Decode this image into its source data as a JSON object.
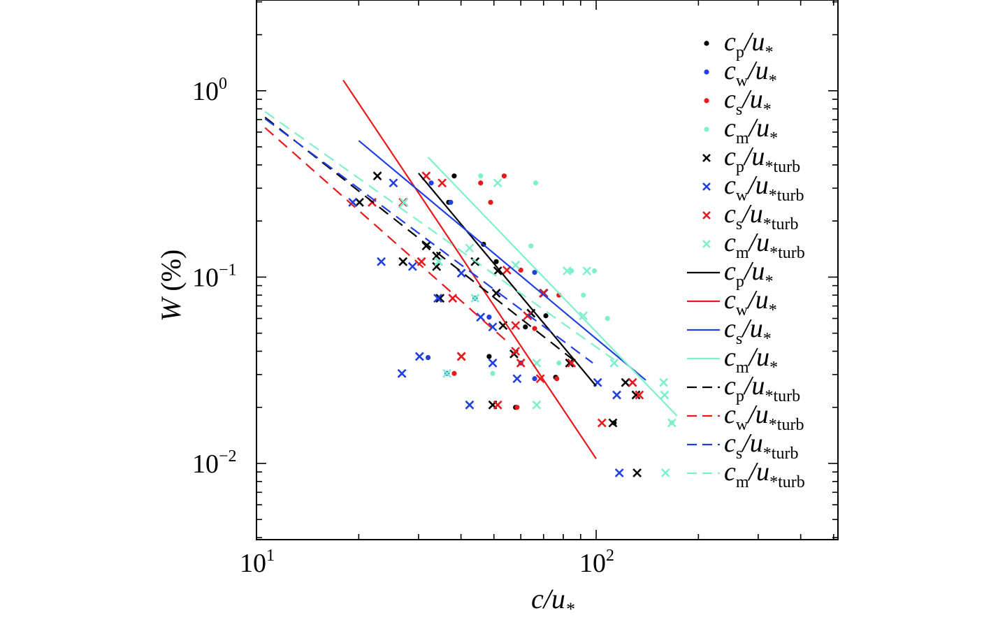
{
  "chart_data": {
    "type": "scatter",
    "title": "",
    "xlabel": {
      "main": "c/u",
      "sub": "*"
    },
    "ylabel": {
      "main": "W",
      "rest": " (%)"
    },
    "xscale": "log",
    "yscale": "log",
    "xlim": [
      10,
      515
    ],
    "ylim": [
      0.0039,
      3.07
    ],
    "grid": false,
    "legend_placement": "right",
    "xticks": [
      {
        "value": 10,
        "base": "10",
        "exp": "1"
      },
      {
        "value": 100,
        "base": "10",
        "exp": "2"
      }
    ],
    "yticks": [
      {
        "value": 1,
        "base": "10",
        "exp": "0"
      },
      {
        "value": 0.1,
        "base": "10",
        "exp": "−1"
      },
      {
        "value": 0.01,
        "base": "10",
        "exp": "−2"
      }
    ],
    "colors": {
      "p": "#000000",
      "w": "#1f3fe0",
      "s": "#e8191c",
      "m": "#7ff0cf"
    },
    "scatter_series": [
      {
        "name": "cp/u*",
        "marker": "dot",
        "color_key": "p",
        "label": {
          "a": "c",
          "b": "p",
          "c": "/u",
          "d": "*"
        },
        "x": [
          38.2,
          36.8,
          46.6,
          50.8,
          61.9,
          71.1,
          48.4,
          57.9,
          113,
          76
        ],
        "y": [
          0.349,
          0.252,
          0.15,
          0.121,
          0.054,
          0.062,
          0.0375,
          0.02,
          0.0165,
          0.029
        ]
      },
      {
        "name": "cw/u*",
        "marker": "dot",
        "color_key": "w",
        "label": {
          "a": "c",
          "b": "w",
          "c": "/u",
          "d": "*"
        },
        "x": [
          32.7,
          37.3,
          44.0,
          48.4,
          32.0,
          36.4,
          60,
          65.9,
          65.9
        ],
        "y": [
          0.32,
          0.252,
          0.077,
          0.061,
          0.037,
          0.0304,
          0.0346,
          0.106,
          0.0285
        ]
      },
      {
        "name": "cs/u*",
        "marker": "dot",
        "color_key": "s",
        "label": {
          "a": "c",
          "b": "s",
          "c": "/u",
          "d": "*"
        },
        "x": [
          53.6,
          45.7,
          48.9,
          38.2,
          58.5,
          76.6,
          65.9,
          77.7,
          60
        ],
        "y": [
          0.349,
          0.32,
          0.252,
          0.0304,
          0.02,
          0.0285,
          0.053,
          0.08,
          0.109
        ]
      },
      {
        "name": "cm/u*",
        "marker": "dot",
        "color_key": "m",
        "label": {
          "a": "c",
          "b": "m",
          "c": "/u",
          "d": "*"
        },
        "x": [
          45.7,
          66.4,
          64.3,
          84.6,
          98.8,
          91.7,
          108,
          77.7,
          49.6,
          167
        ],
        "y": [
          0.349,
          0.32,
          0.147,
          0.108,
          0.108,
          0.08,
          0.06,
          0.0346,
          0.0304,
          0.0165
        ]
      },
      {
        "name": "cp/u*turb",
        "marker": "x",
        "color_key": "p",
        "label": {
          "a": "c",
          "b": "p",
          "c": "/u",
          "d": "*turb"
        },
        "x": [
          22.7,
          20.1,
          31.6,
          33.9,
          27.0,
          33.9,
          44.0,
          51.3,
          34.7,
          50.8,
          53.2,
          64.3,
          57.3,
          40.1,
          49.6,
          83.5,
          122,
          131,
          112,
          132
        ],
        "y": [
          0.349,
          0.252,
          0.147,
          0.13,
          0.121,
          0.114,
          0.121,
          0.108,
          0.077,
          0.082,
          0.055,
          0.064,
          0.0387,
          0.0375,
          0.0206,
          0.0346,
          0.0272,
          0.0233,
          0.0165,
          0.0089
        ]
      },
      {
        "name": "cw/u*turb",
        "marker": "x",
        "color_key": "w",
        "label": {
          "a": "c",
          "b": "w",
          "c": "/u",
          "d": "*turb"
        },
        "x": [
          19.2,
          25.3,
          23.3,
          28.8,
          34.2,
          40.1,
          45.7,
          49.6,
          42.4,
          26.8,
          30.2,
          49.6,
          58.5,
          101,
          115,
          117,
          70.2
        ],
        "y": [
          0.252,
          0.32,
          0.121,
          0.114,
          0.077,
          0.105,
          0.061,
          0.054,
          0.0206,
          0.0304,
          0.0375,
          0.0346,
          0.0285,
          0.0272,
          0.0233,
          0.0089,
          0.082
        ]
      },
      {
        "name": "cs/u*turb",
        "marker": "x",
        "color_key": "s",
        "label": {
          "a": "c",
          "b": "s",
          "c": "/u",
          "d": "*turb"
        },
        "x": [
          31.6,
          35.2,
          27.0,
          21.9,
          30.6,
          37.8,
          54.6,
          57.9,
          69.9,
          62.8,
          40.1,
          60,
          68.5,
          51.3,
          57.9,
          84.6,
          128,
          134,
          104
        ],
        "y": [
          0.349,
          0.32,
          0.252,
          0.252,
          0.121,
          0.077,
          0.109,
          0.055,
          0.082,
          0.062,
          0.0375,
          0.0346,
          0.0285,
          0.0206,
          0.04,
          0.0346,
          0.0272,
          0.0233,
          0.0165
        ]
      },
      {
        "name": "cm/u*turb",
        "marker": "x",
        "color_key": "m",
        "label": {
          "a": "c",
          "b": "m",
          "c": "/u",
          "d": "*turb"
        },
        "x": [
          27.2,
          34.4,
          42.4,
          51.3,
          44,
          57.9,
          82.1,
          93.9,
          91.7,
          66.8,
          66.8,
          113,
          158,
          159,
          167,
          160,
          36.4
        ],
        "y": [
          0.252,
          0.121,
          0.143,
          0.32,
          0.077,
          0.116,
          0.108,
          0.108,
          0.062,
          0.0346,
          0.0206,
          0.0346,
          0.0272,
          0.0233,
          0.0165,
          0.0089,
          0.0304
        ]
      }
    ],
    "line_series": [
      {
        "name": "cp/u* fit",
        "style": "solid",
        "color_key": "p",
        "label": {
          "a": "c",
          "b": "p",
          "c": "/u",
          "d": "*"
        },
        "x": [
          30,
          100
        ],
        "y": [
          0.361,
          0.026
        ]
      },
      {
        "name": "cw/u* fit",
        "style": "solid",
        "color_key": "s",
        "label": {
          "a": "c",
          "b": "w",
          "c": "/u",
          "d": "*"
        },
        "x": [
          18,
          100
        ],
        "y": [
          1.14,
          0.0106
        ]
      },
      {
        "name": "cs/u* fit",
        "style": "solid",
        "color_key": "w",
        "label": {
          "a": "c",
          "b": "s",
          "c": "/u",
          "d": "*"
        },
        "x": [
          20,
          140
        ],
        "y": [
          0.54,
          0.028
        ]
      },
      {
        "name": "cm/u* fit",
        "style": "solid",
        "color_key": "m",
        "label": {
          "a": "c",
          "b": "m",
          "c": "/u",
          "d": "*"
        },
        "x": [
          32,
          173
        ],
        "y": [
          0.44,
          0.018
        ]
      },
      {
        "name": "cp/u*turb fit",
        "style": "dashed",
        "color_key": "p",
        "label": {
          "a": "c",
          "b": "p",
          "c": "/u",
          "d": "*turb"
        },
        "x": [
          10.6,
          85.4
        ],
        "y": [
          0.72,
          0.0361
        ]
      },
      {
        "name": "cw/u*turb fit",
        "style": "dashed",
        "color_key": "s",
        "label": {
          "a": "c",
          "b": "w",
          "c": "/u",
          "d": "*turb"
        },
        "x": [
          10.6,
          54.0
        ],
        "y": [
          0.633,
          0.046
        ]
      },
      {
        "name": "cs/u*turb fit",
        "style": "dashed",
        "color_key": "w",
        "label": {
          "a": "c",
          "b": "s",
          "c": "/u",
          "d": "*turb"
        },
        "x": [
          10.6,
          97.7
        ],
        "y": [
          0.708,
          0.0346
        ]
      },
      {
        "name": "cm/u*turb fit",
        "style": "dashed",
        "color_key": "m",
        "label": {
          "a": "c",
          "b": "m",
          "c": "/u",
          "d": "*turb"
        },
        "x": [
          10.6,
          113
        ],
        "y": [
          0.772,
          0.036
        ]
      }
    ]
  }
}
